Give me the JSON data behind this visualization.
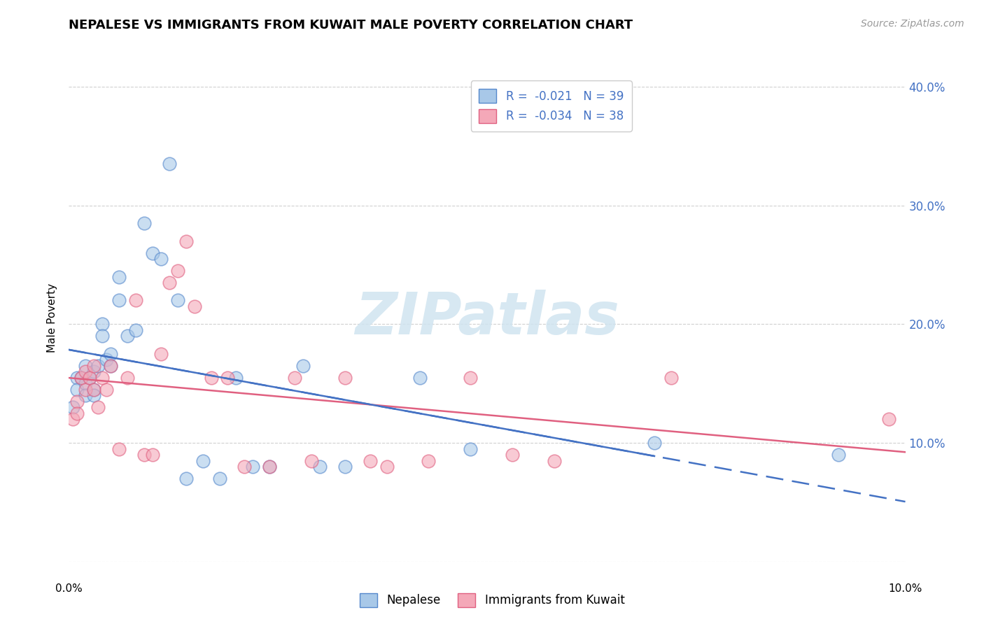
{
  "title": "NEPALESE VS IMMIGRANTS FROM KUWAIT MALE POVERTY CORRELATION CHART",
  "source": "Source: ZipAtlas.com",
  "ylabel": "Male Poverty",
  "xlim": [
    0.0,
    0.1
  ],
  "ylim": [
    0.0,
    0.41
  ],
  "yticks": [
    0.0,
    0.1,
    0.2,
    0.3,
    0.4
  ],
  "ytick_labels": [
    "",
    "10.0%",
    "20.0%",
    "30.0%",
    "40.0%"
  ],
  "series1_label": "Nepalese",
  "series2_label": "Immigrants from Kuwait",
  "series1_color": "#a8c8e8",
  "series2_color": "#f4a8b8",
  "series1_edge_color": "#5588cc",
  "series2_edge_color": "#e06080",
  "series1_line_color": "#4472c4",
  "series2_line_color": "#e06080",
  "watermark_text": "ZIPatlas",
  "watermark_color": "#d0e4f0",
  "background_color": "#ffffff",
  "grid_color": "#d0d0d0",
  "nepalese_x": [
    0.0005,
    0.001,
    0.001,
    0.0015,
    0.002,
    0.002,
    0.002,
    0.0025,
    0.003,
    0.003,
    0.003,
    0.0035,
    0.004,
    0.004,
    0.0045,
    0.005,
    0.005,
    0.006,
    0.006,
    0.007,
    0.008,
    0.009,
    0.01,
    0.011,
    0.012,
    0.013,
    0.014,
    0.016,
    0.018,
    0.02,
    0.022,
    0.024,
    0.028,
    0.03,
    0.033,
    0.042,
    0.048,
    0.07,
    0.092
  ],
  "nepalese_y": [
    0.13,
    0.155,
    0.145,
    0.155,
    0.15,
    0.165,
    0.14,
    0.155,
    0.145,
    0.16,
    0.14,
    0.165,
    0.2,
    0.19,
    0.17,
    0.165,
    0.175,
    0.22,
    0.24,
    0.19,
    0.195,
    0.285,
    0.26,
    0.255,
    0.335,
    0.22,
    0.07,
    0.085,
    0.07,
    0.155,
    0.08,
    0.08,
    0.165,
    0.08,
    0.08,
    0.155,
    0.095,
    0.1,
    0.09
  ],
  "kuwait_x": [
    0.0005,
    0.001,
    0.001,
    0.0015,
    0.002,
    0.002,
    0.0025,
    0.003,
    0.003,
    0.0035,
    0.004,
    0.0045,
    0.005,
    0.006,
    0.007,
    0.008,
    0.009,
    0.01,
    0.011,
    0.012,
    0.013,
    0.014,
    0.015,
    0.017,
    0.019,
    0.021,
    0.024,
    0.027,
    0.029,
    0.033,
    0.036,
    0.038,
    0.043,
    0.048,
    0.053,
    0.058,
    0.072,
    0.098
  ],
  "kuwait_y": [
    0.12,
    0.135,
    0.125,
    0.155,
    0.145,
    0.16,
    0.155,
    0.145,
    0.165,
    0.13,
    0.155,
    0.145,
    0.165,
    0.095,
    0.155,
    0.22,
    0.09,
    0.09,
    0.175,
    0.235,
    0.245,
    0.27,
    0.215,
    0.155,
    0.155,
    0.08,
    0.08,
    0.155,
    0.085,
    0.155,
    0.085,
    0.08,
    0.085,
    0.155,
    0.09,
    0.085,
    0.155,
    0.12
  ],
  "legend1_label": "R =  -0.021   N = 39",
  "legend2_label": "R =  -0.034   N = 38",
  "legend_text_color": "#4472c4",
  "right_tick_color": "#4472c4",
  "title_fontsize": 13,
  "source_fontsize": 10,
  "axis_label_fontsize": 11,
  "tick_fontsize": 12,
  "watermark_fontsize": 60,
  "legend_fontsize": 12,
  "scatter_size": 180,
  "scatter_alpha": 0.6,
  "line_width": 1.8
}
